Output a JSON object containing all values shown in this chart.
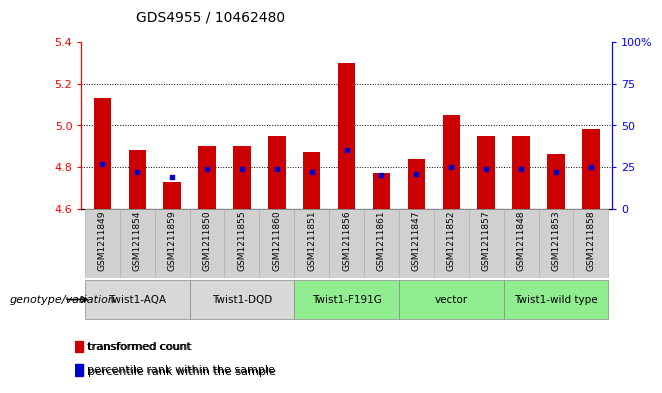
{
  "title": "GDS4955 / 10462480",
  "samples": [
    "GSM1211849",
    "GSM1211854",
    "GSM1211859",
    "GSM1211850",
    "GSM1211855",
    "GSM1211860",
    "GSM1211851",
    "GSM1211856",
    "GSM1211861",
    "GSM1211847",
    "GSM1211852",
    "GSM1211857",
    "GSM1211848",
    "GSM1211853",
    "GSM1211858"
  ],
  "bar_values": [
    5.13,
    4.88,
    4.73,
    4.9,
    4.9,
    4.95,
    4.87,
    5.3,
    4.77,
    4.84,
    5.05,
    4.95,
    4.95,
    4.86,
    4.98
  ],
  "percentile_values": [
    27,
    22,
    19,
    24,
    24,
    24,
    22,
    35,
    20,
    21,
    25,
    24,
    24,
    22,
    25
  ],
  "groups": [
    {
      "label": "Twist1-AQA",
      "start": 0,
      "end": 2,
      "color": "#d8d8d8"
    },
    {
      "label": "Twist1-DQD",
      "start": 3,
      "end": 5,
      "color": "#d8d8d8"
    },
    {
      "label": "Twist1-F191G",
      "start": 6,
      "end": 8,
      "color": "#90ee90"
    },
    {
      "label": "vector",
      "start": 9,
      "end": 11,
      "color": "#90ee90"
    },
    {
      "label": "Twist1-wild type",
      "start": 12,
      "end": 14,
      "color": "#90ee90"
    }
  ],
  "y_min": 4.6,
  "y_max": 5.4,
  "y_ticks": [
    4.6,
    4.8,
    5.0,
    5.2,
    5.4
  ],
  "right_y_ticks": [
    0,
    25,
    50,
    75,
    100
  ],
  "right_y_labels": [
    "0",
    "25",
    "50",
    "75",
    "100%"
  ],
  "bar_color": "#cc0000",
  "percentile_color": "#0000cc",
  "bg_color": "#ffffff",
  "legend_label_bar": "transformed count",
  "legend_label_dot": "percentile rank within the sample",
  "genotype_label": "genotype/variation"
}
